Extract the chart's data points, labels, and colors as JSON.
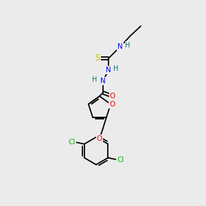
{
  "bg_color": "#ebebeb",
  "atom_colors": {
    "C": "#000000",
    "N": "#0000ee",
    "O": "#ee0000",
    "S": "#ccbb00",
    "Cl": "#00bb00",
    "H": "#007777"
  },
  "bond_color": "#000000",
  "font_size": 7.5
}
